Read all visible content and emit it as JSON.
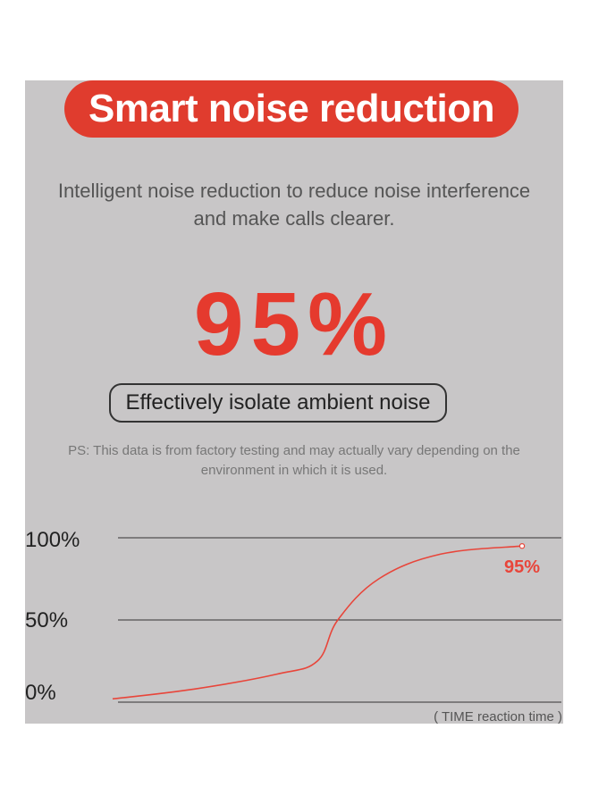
{
  "header": {
    "title": "Smart noise reduction"
  },
  "subtitle": {
    "line1": "Intelligent noise reduction to reduce noise interference",
    "line2": "and make calls clearer."
  },
  "highlight": {
    "value": "95%"
  },
  "badge": {
    "label": "Effectively isolate ambient noise"
  },
  "note": {
    "line1": "PS: This data is from factory testing and may actually vary depending on the",
    "line2": "environment in which it is used."
  },
  "colors": {
    "accent": "#e03c2e",
    "line": "#e8453a",
    "panel": "#c8c6c7",
    "grid": "#333333"
  },
  "chart_data": {
    "type": "line",
    "title": "",
    "xlabel": "( TIME reaction time )",
    "ylabel": "",
    "y_ticks": [
      "100%",
      "50%",
      "0%"
    ],
    "ylim": [
      0,
      100
    ],
    "grid": true,
    "series": [
      {
        "points": [
          [
            0,
            2
          ],
          [
            20,
            8
          ],
          [
            40,
            17
          ],
          [
            50,
            25
          ],
          [
            55,
            50
          ],
          [
            65,
            75
          ],
          [
            80,
            90
          ],
          [
            100,
            95
          ]
        ]
      }
    ],
    "annotations": [
      {
        "text": "95%",
        "x": 100,
        "y": 95
      }
    ]
  }
}
